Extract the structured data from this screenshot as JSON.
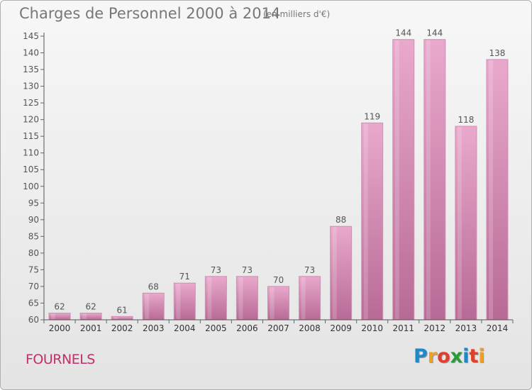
{
  "title": "Charges de Personnel 2000 à 2014",
  "subtitle": "(en milliers d'€)",
  "commune": "FOURNELS",
  "brand": {
    "letters": [
      "P",
      "r",
      "o",
      "x",
      "i",
      "t",
      "i"
    ],
    "colors": [
      "#1e88c8",
      "#f0a020",
      "#e0402a",
      "#2a9a3a",
      "#1e88c8",
      "#e0402a",
      "#f0a020"
    ]
  },
  "colors": {
    "bar": "#d98ab4",
    "bar_highlight": "#e9a9cc",
    "bar_shadow": "#b86a96",
    "text": "#555555"
  },
  "chart_data": {
    "type": "bar",
    "title": "Charges de Personnel 2000 à 2014",
    "ylabel": "(en milliers d'€)",
    "xlabel": "",
    "categories": [
      "2000",
      "2001",
      "2002",
      "2003",
      "2004",
      "2005",
      "2006",
      "2007",
      "2008",
      "2009",
      "2010",
      "2011",
      "2012",
      "2013",
      "2014"
    ],
    "values": [
      62,
      62,
      61,
      68,
      71,
      73,
      73,
      70,
      73,
      88,
      119,
      144,
      144,
      118,
      138
    ],
    "ylim": [
      60,
      145
    ],
    "yticks": [
      60,
      65,
      70,
      75,
      80,
      85,
      90,
      95,
      100,
      105,
      110,
      115,
      120,
      125,
      130,
      135,
      140,
      145
    ],
    "grid": false,
    "legend": "none"
  }
}
